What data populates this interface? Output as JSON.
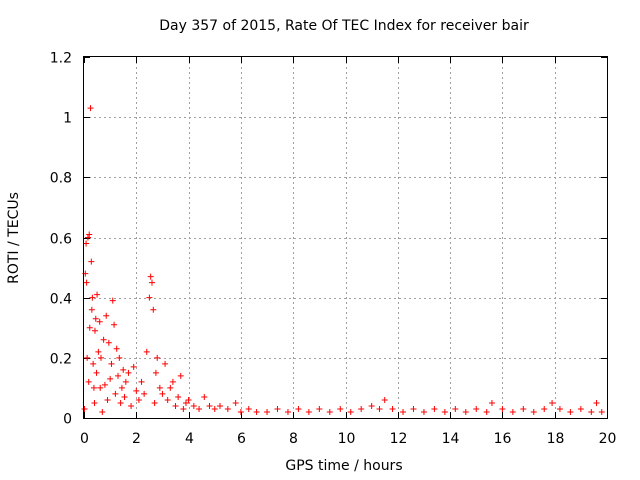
{
  "chart_data": {
    "type": "scatter",
    "title": "Day 357 of 2015, Rate Of TEC Index for receiver bair",
    "xlabel": "GPS time / hours",
    "ylabel": "ROTI / TECUs",
    "xlim": [
      0,
      20
    ],
    "ylim": [
      0,
      1.2
    ],
    "xticks": [
      0,
      2,
      4,
      6,
      8,
      10,
      12,
      14,
      16,
      18,
      20
    ],
    "yticks": [
      0,
      0.2,
      0.4,
      0.6,
      0.8,
      1,
      1.2
    ],
    "xtick_labels": [
      "0",
      "2",
      "4",
      "6",
      "8",
      "10",
      "12",
      "14",
      "16",
      "18",
      "20"
    ],
    "ytick_labels": [
      "0",
      "0.2",
      "0.4",
      "0.6",
      "0.8",
      "1",
      "1.2"
    ],
    "grid": true,
    "marker": "+",
    "series": [
      {
        "name": "ROTI",
        "color": "#ff0000",
        "x": [
          0.02,
          0.05,
          0.08,
          0.1,
          0.12,
          0.15,
          0.18,
          0.2,
          0.22,
          0.25,
          0.28,
          0.3,
          0.32,
          0.35,
          0.38,
          0.4,
          0.42,
          0.45,
          0.48,
          0.5,
          0.55,
          0.6,
          0.62,
          0.65,
          0.7,
          0.75,
          0.8,
          0.85,
          0.9,
          0.95,
          1.0,
          1.05,
          1.1,
          1.15,
          1.2,
          1.25,
          1.3,
          1.35,
          1.4,
          1.45,
          1.5,
          1.55,
          1.6,
          1.7,
          1.8,
          1.9,
          2.0,
          2.1,
          2.2,
          2.3,
          2.4,
          2.5,
          2.55,
          2.6,
          2.65,
          2.7,
          2.75,
          2.8,
          2.9,
          3.0,
          3.1,
          3.2,
          3.3,
          3.4,
          3.5,
          3.6,
          3.7,
          3.8,
          3.9,
          4.0,
          4.2,
          4.4,
          4.6,
          4.8,
          5.0,
          5.2,
          5.5,
          5.8,
          6.0,
          6.3,
          6.6,
          7.0,
          7.4,
          7.8,
          8.2,
          8.6,
          9.0,
          9.4,
          9.8,
          10.2,
          10.6,
          11.0,
          11.3,
          11.5,
          11.8,
          12.2,
          12.6,
          13.0,
          13.4,
          13.8,
          14.2,
          14.6,
          15.0,
          15.4,
          15.6,
          16.0,
          16.4,
          16.8,
          17.2,
          17.6,
          17.9,
          18.2,
          18.6,
          19.0,
          19.4,
          19.6,
          19.8
        ],
        "y": [
          0.03,
          0.48,
          0.58,
          0.45,
          0.2,
          0.6,
          0.12,
          0.61,
          0.3,
          1.03,
          0.52,
          0.36,
          0.4,
          0.18,
          0.1,
          0.05,
          0.29,
          0.33,
          0.15,
          0.41,
          0.22,
          0.32,
          0.1,
          0.2,
          0.02,
          0.26,
          0.11,
          0.34,
          0.06,
          0.25,
          0.13,
          0.18,
          0.39,
          0.31,
          0.08,
          0.23,
          0.14,
          0.2,
          0.05,
          0.1,
          0.16,
          0.07,
          0.12,
          0.15,
          0.04,
          0.17,
          0.09,
          0.06,
          0.12,
          0.08,
          0.22,
          0.4,
          0.47,
          0.45,
          0.36,
          0.05,
          0.15,
          0.2,
          0.1,
          0.08,
          0.18,
          0.06,
          0.1,
          0.12,
          0.04,
          0.07,
          0.14,
          0.03,
          0.05,
          0.06,
          0.04,
          0.03,
          0.07,
          0.04,
          0.03,
          0.04,
          0.03,
          0.05,
          0.02,
          0.03,
          0.02,
          0.02,
          0.03,
          0.02,
          0.03,
          0.02,
          0.03,
          0.02,
          0.03,
          0.02,
          0.03,
          0.04,
          0.03,
          0.06,
          0.03,
          0.02,
          0.03,
          0.02,
          0.03,
          0.02,
          0.03,
          0.02,
          0.03,
          0.02,
          0.05,
          0.03,
          0.02,
          0.03,
          0.02,
          0.03,
          0.05,
          0.03,
          0.02,
          0.03,
          0.02,
          0.05,
          0.02
        ]
      }
    ]
  }
}
